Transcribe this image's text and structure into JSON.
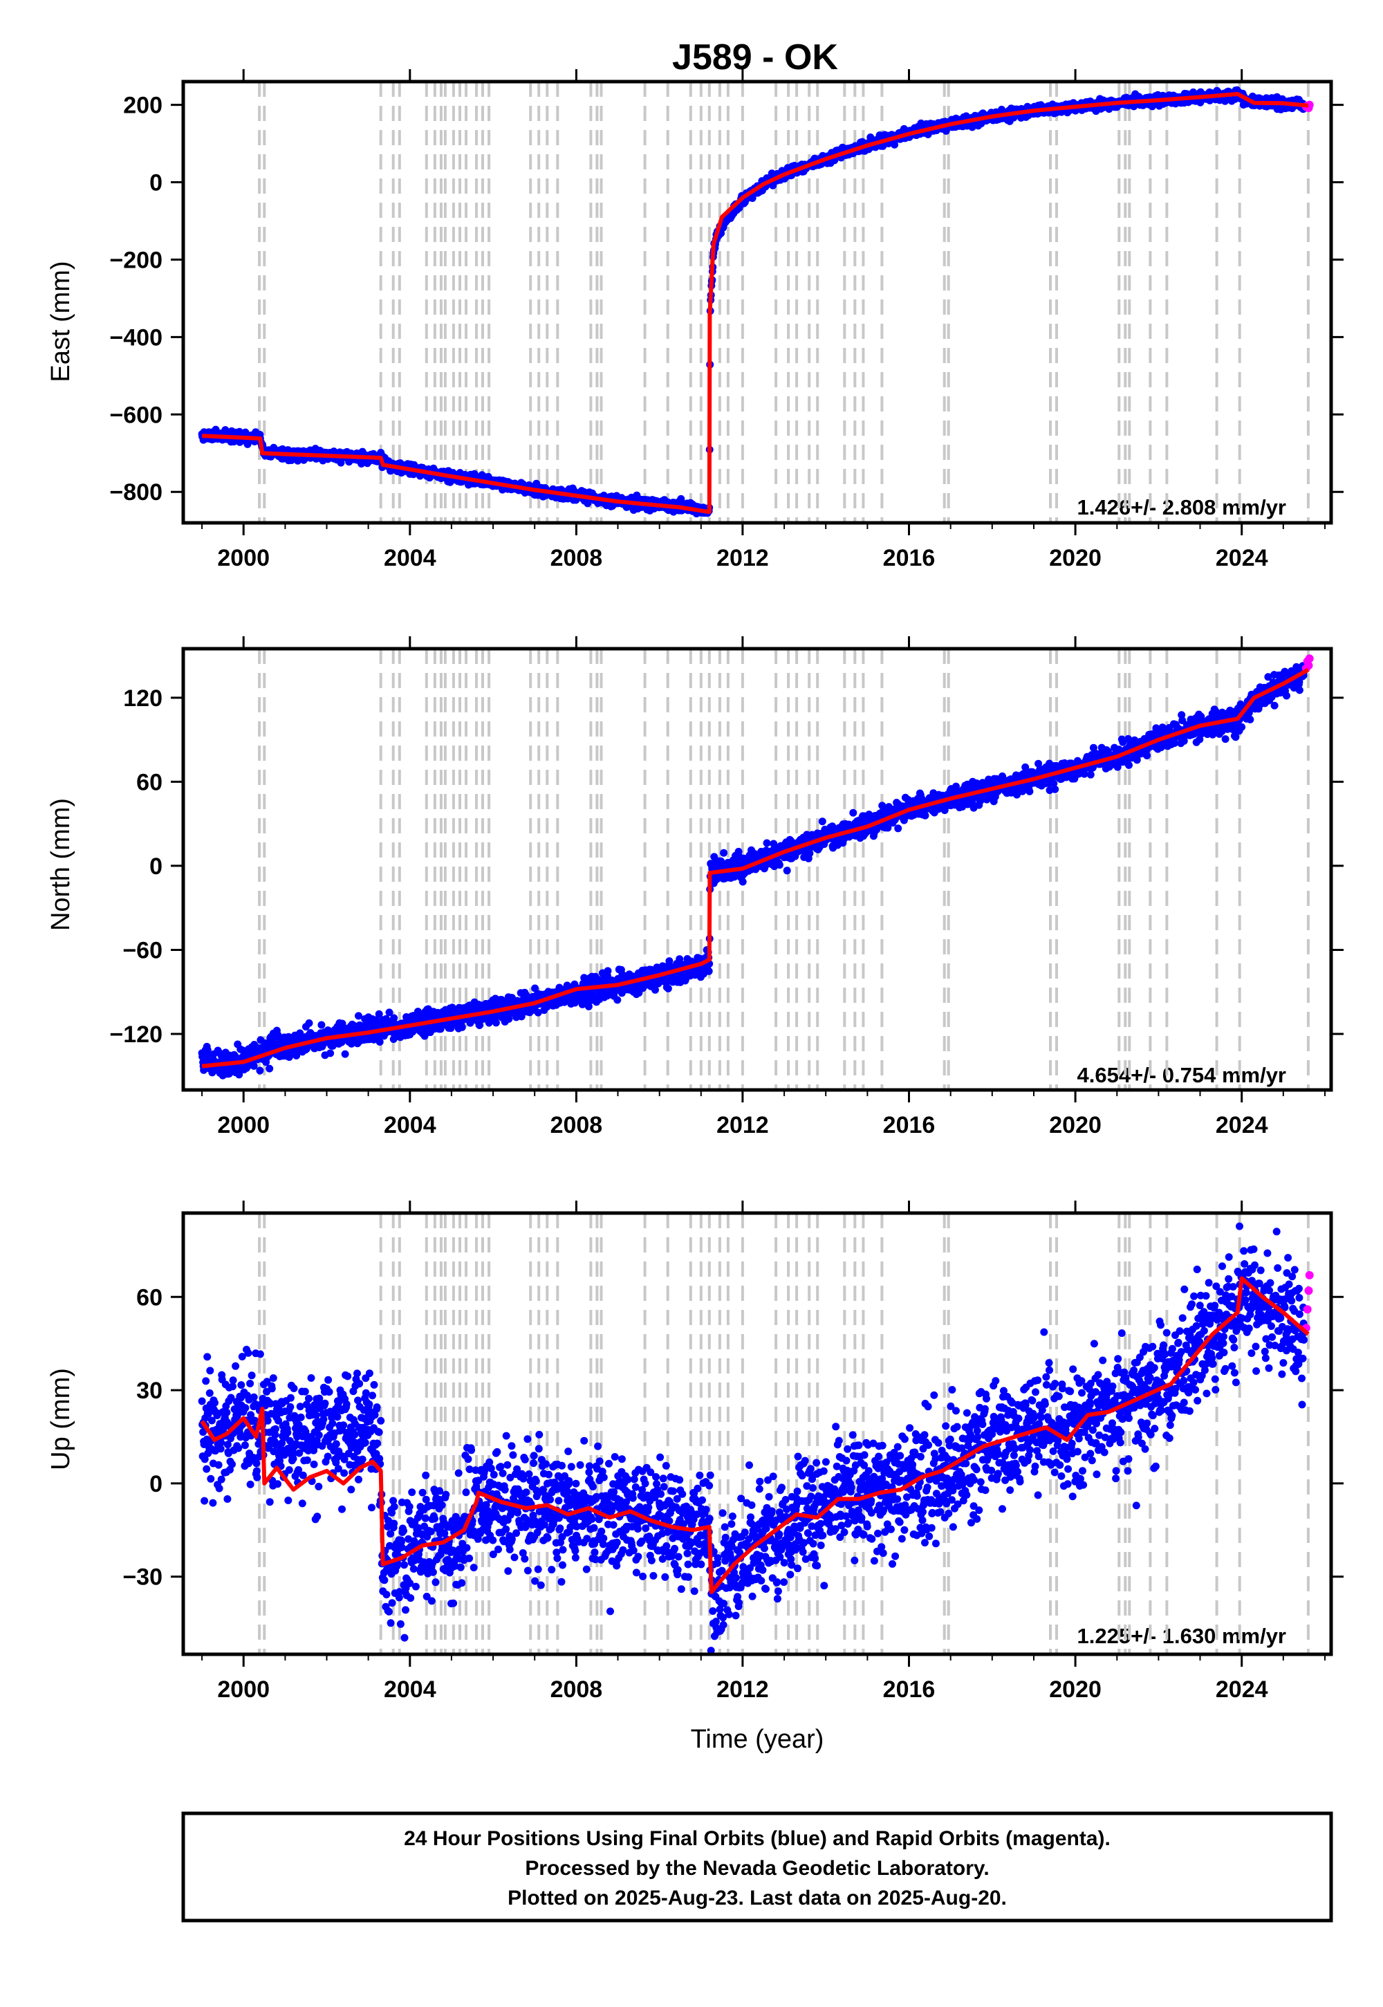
{
  "figure": {
    "title": "J589 - OK",
    "footer_lines": [
      "24 Hour Positions Using Final Orbits (blue) and Rapid Orbits (magenta).",
      "Processed by the Nevada Geodetic Laboratory.",
      "Plotted on 2025-Aug-23. Last data on 2025-Aug-20."
    ],
    "colors": {
      "final_orbits": "#0000ff",
      "rapid_orbits": "#ff00ff",
      "model": "#ff0000",
      "equipment_change": "#c8c8c8"
    }
  },
  "chart_data": [
    {
      "type": "scatter",
      "component": "east",
      "title": "",
      "xlabel": "",
      "ylabel": "East (mm)",
      "xlim": [
        1998.55,
        2026.15
      ],
      "ylim": [
        -880,
        260
      ],
      "xticks": [
        2000,
        2004,
        2008,
        2012,
        2016,
        2020,
        2024
      ],
      "xtick_labels": [
        "2000",
        "2004",
        "2008",
        "2012",
        "2016",
        "2020",
        "2024"
      ],
      "yticks": [
        200,
        0,
        -200,
        -400,
        -600,
        -800
      ],
      "ytick_labels": [
        "200",
        "0",
        "−200",
        "−400",
        "−600",
        "−800"
      ],
      "rate_label": "1.426+/- 2.808 mm/yr",
      "noise": 6,
      "trend_line": {
        "x": [
          1999.0,
          2000.4,
          2000.45,
          2003.3,
          2003.35,
          2005.0,
          2007.0,
          2009.0,
          2010.5,
          2011.2,
          2011.21,
          2011.3,
          2011.5,
          2012.0,
          2012.5,
          2013.0,
          2014.0,
          2015.0,
          2016.0,
          2017.0,
          2018.0,
          2019.0,
          2020.0,
          2021.0,
          2022.0,
          2023.0,
          2023.9,
          2024.3,
          2025.0,
          2025.6
        ],
        "y": [
          -655,
          -662,
          -700,
          -712,
          -730,
          -760,
          -795,
          -825,
          -840,
          -852,
          -340,
          -160,
          -90,
          -40,
          -5,
          20,
          60,
          95,
          125,
          150,
          170,
          185,
          195,
          205,
          212,
          220,
          228,
          205,
          204,
          198
        ]
      },
      "final_orbits": {
        "x": [
          1999.0,
          1999.5,
          2000.0,
          2000.4,
          2000.5,
          2001.0,
          2002.0,
          2003.0,
          2003.3,
          2003.5,
          2004.0,
          2005.0,
          2006.0,
          2007.0,
          2008.0,
          2009.0,
          2010.0,
          2010.5,
          2011.0,
          2011.2,
          2011.22,
          2011.26,
          2011.3,
          2011.4,
          2011.6,
          2012.0,
          2012.5,
          2013.0,
          2013.5,
          2014.0,
          2014.5,
          2015.0,
          2015.5,
          2016.0,
          2016.5,
          2017.0,
          2017.5,
          2018.0,
          2019.0,
          2020.0,
          2021.0,
          2022.0,
          2023.0,
          2023.5,
          2023.9,
          2024.1,
          2024.4,
          2025.0,
          2025.5
        ],
        "y": [
          -655,
          -655,
          -660,
          -662,
          -698,
          -703,
          -706,
          -710,
          -715,
          -732,
          -740,
          -760,
          -775,
          -795,
          -810,
          -825,
          -833,
          -840,
          -847,
          -850,
          -330,
          -250,
          -180,
          -130,
          -95,
          -45,
          -5,
          20,
          40,
          60,
          80,
          95,
          112,
          125,
          140,
          150,
          160,
          170,
          185,
          195,
          205,
          212,
          220,
          224,
          228,
          212,
          205,
          204,
          200
        ]
      },
      "rapid_orbits": {
        "x": [
          2025.55,
          2025.58,
          2025.61,
          2025.63
        ],
        "y": [
          195,
          198,
          192,
          200
        ]
      }
    },
    {
      "type": "scatter",
      "component": "north",
      "title": "",
      "xlabel": "",
      "ylabel": "North (mm)",
      "xlim": [
        1998.55,
        2026.15
      ],
      "ylim": [
        -160,
        155
      ],
      "xticks": [
        2000,
        2004,
        2008,
        2012,
        2016,
        2020,
        2024
      ],
      "xtick_labels": [
        "2000",
        "2004",
        "2008",
        "2012",
        "2016",
        "2020",
        "2024"
      ],
      "yticks": [
        120,
        60,
        0,
        -60,
        -120
      ],
      "ytick_labels": [
        "120",
        "60",
        "0",
        "−60",
        "−120"
      ],
      "rate_label": "4.654+/- 0.754 mm/yr",
      "noise": 4,
      "trend_line": {
        "x": [
          1999.0,
          2000.0,
          2001.0,
          2002.0,
          2003.0,
          2004.0,
          2005.0,
          2006.0,
          2007.0,
          2008.0,
          2009.0,
          2010.0,
          2011.0,
          2011.2,
          2011.21,
          2012.0,
          2013.0,
          2014.0,
          2015.0,
          2016.0,
          2017.0,
          2018.0,
          2019.0,
          2020.0,
          2021.0,
          2022.0,
          2023.0,
          2023.9,
          2024.3,
          2025.0,
          2025.6
        ],
        "y": [
          -143,
          -140,
          -130,
          -123,
          -119,
          -114,
          -109,
          -104,
          -98,
          -88,
          -85,
          -78,
          -70,
          -67,
          -5,
          -2,
          10,
          20,
          28,
          40,
          48,
          55,
          62,
          70,
          78,
          90,
          100,
          105,
          120,
          130,
          140
        ]
      },
      "final_orbits": {
        "x": [
          1999.0,
          1999.5,
          2000.0,
          2000.5,
          2001.0,
          2002.0,
          2003.0,
          2004.0,
          2005.0,
          2006.0,
          2007.0,
          2008.0,
          2009.0,
          2010.0,
          2010.5,
          2011.0,
          2011.2,
          2011.22,
          2011.5,
          2012.0,
          2013.0,
          2014.0,
          2015.0,
          2016.0,
          2017.0,
          2018.0,
          2019.0,
          2020.0,
          2021.0,
          2022.0,
          2023.0,
          2023.9,
          2024.3,
          2025.0,
          2025.5
        ],
        "y": [
          -140,
          -142,
          -138,
          -132,
          -128,
          -123,
          -118,
          -114,
          -108,
          -103,
          -97,
          -90,
          -85,
          -79,
          -75,
          -70,
          -67,
          -5,
          -3,
          -1,
          10,
          20,
          29,
          40,
          48,
          55,
          62,
          70,
          78,
          90,
          100,
          105,
          118,
          130,
          139
        ]
      },
      "rapid_orbits": {
        "x": [
          2025.55,
          2025.58,
          2025.61,
          2025.63
        ],
        "y": [
          141,
          146,
          143,
          148
        ]
      }
    },
    {
      "type": "scatter",
      "component": "up",
      "title": "",
      "xlabel": "Time (year)",
      "ylabel": "Up (mm)",
      "xlim": [
        1998.55,
        2026.15
      ],
      "ylim": [
        -55,
        87
      ],
      "xticks": [
        2000,
        2004,
        2008,
        2012,
        2016,
        2020,
        2024
      ],
      "xtick_labels": [
        "2000",
        "2004",
        "2008",
        "2012",
        "2016",
        "2020",
        "2024"
      ],
      "yticks": [
        60,
        30,
        0,
        -30
      ],
      "ytick_labels": [
        "60",
        "30",
        "0",
        "−30"
      ],
      "rate_label": "1.225+/- 1.630 mm/yr",
      "noise": 9,
      "trend_line": {
        "x": [
          1999.0,
          1999.3,
          1999.6,
          2000.0,
          2000.3,
          2000.45,
          2000.5,
          2000.8,
          2001.2,
          2001.6,
          2002.0,
          2002.4,
          2002.8,
          2003.1,
          2003.3,
          2003.35,
          2003.8,
          2004.3,
          2004.8,
          2005.3,
          2005.6,
          2005.65,
          2006.2,
          2006.8,
          2007.3,
          2007.8,
          2008.3,
          2008.8,
          2009.3,
          2009.8,
          2010.3,
          2010.8,
          2011.2,
          2011.25,
          2011.8,
          2012.3,
          2012.8,
          2013.3,
          2013.8,
          2014.3,
          2014.8,
          2015.3,
          2015.8,
          2016.3,
          2016.8,
          2017.3,
          2017.8,
          2018.3,
          2018.8,
          2019.3,
          2019.8,
          2020.3,
          2020.8,
          2021.3,
          2021.8,
          2022.3,
          2022.8,
          2023.3,
          2023.9,
          2024.0,
          2024.5,
          2025.0,
          2025.6
        ],
        "y": [
          20,
          14,
          16,
          21,
          15,
          24,
          0,
          5,
          -2,
          2,
          4,
          0,
          5,
          7,
          4,
          -26,
          -24,
          -20,
          -19,
          -15,
          -6,
          -3,
          -6,
          -8,
          -7,
          -10,
          -8,
          -11,
          -9,
          -12,
          -14,
          -15,
          -14,
          -35,
          -26,
          -20,
          -15,
          -10,
          -11,
          -5,
          -5,
          -3,
          -2,
          2,
          4,
          8,
          12,
          14,
          16,
          18,
          14,
          22,
          23,
          26,
          29,
          32,
          40,
          48,
          55,
          66,
          60,
          55,
          48
        ]
      },
      "final_orbits": {
        "x": [
          1999.0,
          1999.3,
          1999.6,
          2000.0,
          2000.3,
          2000.45,
          2000.5,
          2000.8,
          2001.2,
          2001.6,
          2002.0,
          2002.4,
          2002.8,
          2003.1,
          2003.3,
          2003.35,
          2003.8,
          2004.3,
          2004.8,
          2005.3,
          2005.6,
          2005.65,
          2006.2,
          2006.8,
          2007.3,
          2007.8,
          2008.3,
          2008.8,
          2009.3,
          2009.8,
          2010.3,
          2010.8,
          2011.2,
          2011.25,
          2011.8,
          2012.3,
          2012.8,
          2013.3,
          2013.8,
          2014.3,
          2014.8,
          2015.3,
          2015.8,
          2016.3,
          2016.8,
          2017.3,
          2017.8,
          2018.3,
          2018.8,
          2019.3,
          2019.8,
          2020.3,
          2020.8,
          2021.3,
          2021.8,
          2022.3,
          2022.8,
          2023.3,
          2023.9,
          2024.0,
          2024.5,
          2025.0,
          2025.5
        ],
        "y": [
          18,
          15,
          17,
          22,
          16,
          22,
          18,
          16,
          14,
          16,
          18,
          16,
          17,
          17,
          5,
          -26,
          -24,
          -20,
          -19,
          -15,
          -6,
          -4,
          -6,
          -8,
          -7,
          -10,
          -8,
          -11,
          -9,
          -12,
          -14,
          -15,
          -14,
          -35,
          -26,
          -20,
          -15,
          -10,
          -11,
          -5,
          -5,
          -3,
          -2,
          2,
          4,
          8,
          12,
          14,
          16,
          18,
          14,
          22,
          23,
          26,
          29,
          32,
          40,
          48,
          55,
          64,
          58,
          55,
          46
        ]
      },
      "rapid_orbits": {
        "x": [
          2025.55,
          2025.58,
          2025.61,
          2025.63
        ],
        "y": [
          50,
          56,
          62,
          67
        ]
      }
    }
  ],
  "equipment_change_years": [
    2000.38,
    2000.5,
    2003.3,
    2003.6,
    2003.75,
    2004.4,
    2004.6,
    2004.75,
    2004.85,
    2005.05,
    2005.2,
    2005.35,
    2005.6,
    2005.75,
    2005.9,
    2006.9,
    2007.1,
    2007.3,
    2007.55,
    2008.35,
    2008.5,
    2008.6,
    2009.65,
    2010.2,
    2010.75,
    2011.0,
    2011.2,
    2011.45,
    2011.65,
    2012.0,
    2012.8,
    2013.1,
    2013.3,
    2013.6,
    2013.8,
    2014.45,
    2014.7,
    2014.9,
    2015.35,
    2016.85,
    2016.95,
    2019.4,
    2019.55,
    2021.05,
    2021.2,
    2021.3,
    2021.8,
    2022.2,
    2023.4,
    2023.95,
    2025.6
  ]
}
